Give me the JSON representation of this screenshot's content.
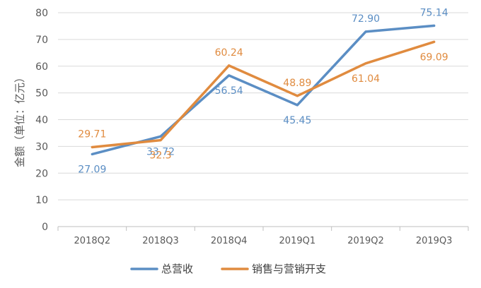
{
  "chart_data": {
    "type": "line",
    "title": "",
    "xlabel": "",
    "ylabel": "金额（单位：亿元）",
    "ylim": [
      0,
      80
    ],
    "yticks": [
      0,
      10,
      20,
      30,
      40,
      50,
      60,
      70,
      80
    ],
    "categories": [
      "2018Q2",
      "2018Q3",
      "2018Q4",
      "2019Q1",
      "2019Q2",
      "2019Q3"
    ],
    "grid": true,
    "legend_position": "bottom",
    "series": [
      {
        "name": "总营收",
        "color": "#5b8ec4",
        "values": [
          27.09,
          33.72,
          56.54,
          45.45,
          72.9,
          75.14
        ],
        "labels": [
          "27.09",
          "33.72",
          "56.54",
          "45.45",
          "72.90",
          "75.14"
        ]
      },
      {
        "name": "销售与营销开支",
        "color": "#e08b3f",
        "values": [
          29.71,
          32.3,
          60.24,
          48.89,
          61.04,
          69.09
        ],
        "labels": [
          "29.71",
          "32.3",
          "60.24",
          "48.89",
          "61.04",
          "69.09"
        ]
      }
    ]
  }
}
